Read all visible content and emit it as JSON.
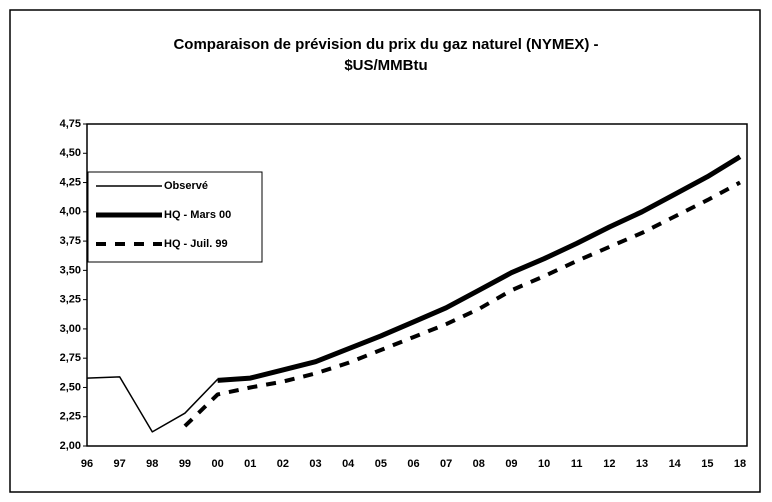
{
  "chart_data": {
    "type": "line",
    "title": [
      "Comparaison de prévision du prix du gaz naturel (NYMEX) -",
      "$US/MMBtu"
    ],
    "categories": [
      "96",
      "97",
      "98",
      "99",
      "00",
      "01",
      "02",
      "03",
      "04",
      "05",
      "06",
      "07",
      "08",
      "09",
      "10",
      "11",
      "12",
      "13",
      "14",
      "15",
      "18"
    ],
    "series": [
      {
        "name": "Observé",
        "color": "#000000",
        "values": [
          2.58,
          2.59,
          2.12,
          2.28,
          2.57,
          null,
          null,
          null,
          null,
          null,
          null,
          null,
          null,
          null,
          null,
          null,
          null,
          null,
          null,
          null,
          null
        ]
      },
      {
        "name": "HQ - Mars 00",
        "color": "#000000",
        "values": [
          null,
          null,
          null,
          null,
          2.56,
          2.58,
          2.65,
          2.72,
          2.83,
          2.94,
          3.06,
          3.18,
          3.33,
          3.48,
          3.6,
          3.73,
          3.87,
          4.0,
          4.15,
          4.3,
          4.47
        ]
      },
      {
        "name": "HQ - Juil. 99",
        "color": "#000000",
        "values": [
          null,
          null,
          null,
          2.17,
          2.44,
          2.5,
          2.55,
          2.62,
          2.71,
          2.82,
          2.93,
          3.04,
          3.17,
          3.33,
          3.45,
          3.58,
          3.7,
          3.82,
          3.96,
          4.1,
          4.25
        ]
      }
    ],
    "ylim": [
      2.0,
      4.75
    ],
    "yticks": [
      {
        "value": 2.0,
        "label": "2,00"
      },
      {
        "value": 2.25,
        "label": "2,25"
      },
      {
        "value": 2.5,
        "label": "2,50"
      },
      {
        "value": 2.75,
        "label": "2,75"
      },
      {
        "value": 3.0,
        "label": "3,00"
      },
      {
        "value": 3.25,
        "label": "3,25"
      },
      {
        "value": 3.5,
        "label": "3,50"
      },
      {
        "value": 3.75,
        "label": "3,75"
      },
      {
        "value": 4.0,
        "label": "4,00"
      },
      {
        "value": 4.25,
        "label": "4,25"
      },
      {
        "value": 4.5,
        "label": "4,50"
      },
      {
        "value": 4.75,
        "label": "4,75"
      }
    ]
  }
}
